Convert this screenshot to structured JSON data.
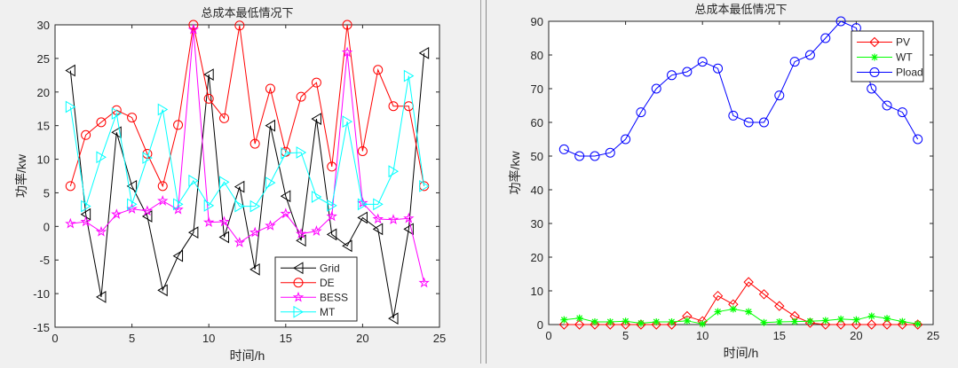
{
  "chart_data": [
    {
      "type": "line",
      "title": "总成本最低情况下",
      "xlabel": "时间/h",
      "ylabel": "功率/kw",
      "xlim": [
        0,
        25
      ],
      "ylim": [
        -15,
        30
      ],
      "xticks": [
        "0",
        "5",
        "10",
        "15",
        "20",
        "25"
      ],
      "xtick_values": [
        0,
        5,
        10,
        15,
        20,
        25
      ],
      "yticks": [
        "-15",
        "-10",
        "-5",
        "0",
        "5",
        "10",
        "15",
        "20",
        "25",
        "30"
      ],
      "ytick_values": [
        -15,
        -10,
        -5,
        0,
        5,
        10,
        15,
        20,
        25,
        30
      ],
      "legend_position": "bottom-center",
      "x": [
        1,
        2,
        3,
        4,
        5,
        6,
        7,
        8,
        9,
        10,
        11,
        12,
        13,
        14,
        15,
        16,
        17,
        18,
        19,
        20,
        21,
        22,
        23,
        24
      ],
      "series": [
        {
          "name": "Grid",
          "color": "#000000",
          "marker": "triangle-left",
          "values": [
            23.2,
            1.8,
            -10.5,
            14,
            6,
            1.5,
            -9.5,
            -4.4,
            -0.9,
            22.6,
            -1.6,
            5.9,
            -6.4,
            15,
            4.5,
            -2.1,
            16,
            -1.2,
            -2.9,
            1.3,
            -0.4,
            -13.7,
            -0.4,
            25.8
          ]
        },
        {
          "name": "DE",
          "color": "#ff0000",
          "marker": "circle",
          "values": [
            6,
            13.6,
            15.5,
            17.3,
            16.2,
            10.8,
            6,
            15.1,
            30,
            19,
            16.1,
            29.9,
            12.3,
            20.5,
            11.1,
            19.3,
            21.4,
            8.9,
            30,
            11.2,
            23.3,
            17.9,
            17.9,
            6
          ]
        },
        {
          "name": "BESS",
          "color": "#ff00ff",
          "marker": "pentagram",
          "values": [
            0.4,
            0.7,
            -0.8,
            1.8,
            2.6,
            2.3,
            3.8,
            2.5,
            29.3,
            0.6,
            0.7,
            -2.4,
            -0.9,
            0.1,
            1.9,
            -1.1,
            -0.7,
            1.5,
            25.9,
            3.5,
            1.1,
            1.0,
            1.2,
            -8.4
          ]
        },
        {
          "name": "MT",
          "color": "#00ffff",
          "marker": "triangle-right",
          "values": [
            17.8,
            3,
            10.3,
            16.8,
            3.3,
            10.2,
            17.4,
            3.3,
            6.8,
            3.1,
            6.6,
            3,
            3,
            6.5,
            10.9,
            11,
            4.4,
            3.1,
            15.6,
            3.3,
            3.3,
            8.2,
            22.4,
            6
          ]
        }
      ]
    },
    {
      "type": "line",
      "title": "总成本最低情况下",
      "xlabel": "时间/h",
      "ylabel": "功率/kw",
      "xlim": [
        0,
        25
      ],
      "ylim": [
        0,
        90
      ],
      "xticks": [
        "0",
        "5",
        "10",
        "15",
        "20",
        "25"
      ],
      "xtick_values": [
        0,
        5,
        10,
        15,
        20,
        25
      ],
      "yticks": [
        "0",
        "10",
        "20",
        "30",
        "40",
        "50",
        "60",
        "70",
        "80",
        "90"
      ],
      "ytick_values": [
        0,
        10,
        20,
        30,
        40,
        50,
        60,
        70,
        80,
        90
      ],
      "legend_position": "top-right",
      "x": [
        1,
        2,
        3,
        4,
        5,
        6,
        7,
        8,
        9,
        10,
        11,
        12,
        13,
        14,
        15,
        16,
        17,
        18,
        19,
        20,
        21,
        22,
        23,
        24
      ],
      "series": [
        {
          "name": "PV",
          "color": "#ff0000",
          "marker": "diamond",
          "values": [
            0,
            0,
            0,
            0,
            0,
            0,
            0,
            0,
            2.5,
            1,
            8.5,
            6,
            12.6,
            9,
            5.5,
            2.5,
            0.5,
            0,
            0,
            0,
            0,
            0,
            0,
            0
          ]
        },
        {
          "name": "WT",
          "color": "#00ff00",
          "marker": "asterisk",
          "values": [
            1.4,
            1.9,
            0.8,
            0.8,
            1,
            0.4,
            0.8,
            0.8,
            1.1,
            0.2,
            3.8,
            4.6,
            3.8,
            0.6,
            0.8,
            0.9,
            1,
            1.2,
            1.6,
            1.4,
            2.5,
            1.8,
            0.9,
            0.2
          ]
        },
        {
          "name": "Pload",
          "color": "#0000ff",
          "marker": "circle",
          "values": [
            52,
            50,
            50,
            51,
            55,
            63,
            70,
            74,
            75,
            78,
            76,
            62,
            60,
            60,
            68,
            78,
            80,
            85,
            90,
            88,
            70,
            65,
            63,
            55
          ]
        }
      ]
    }
  ]
}
